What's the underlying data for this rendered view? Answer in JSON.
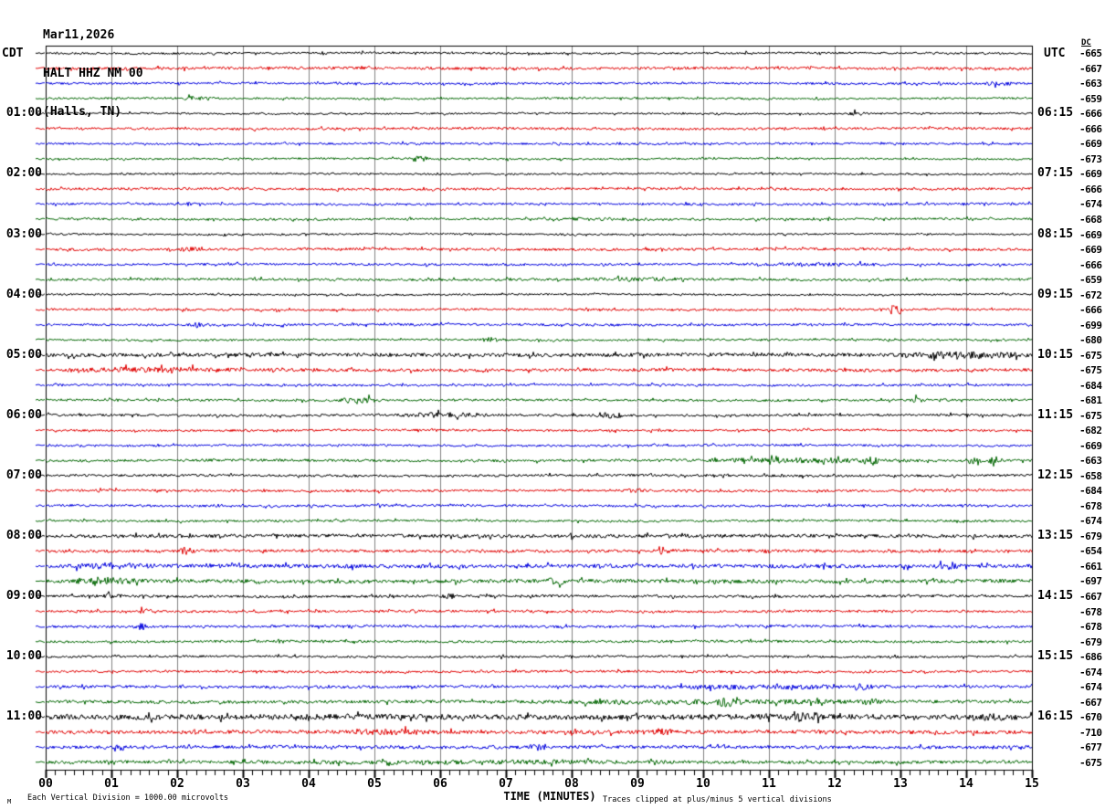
{
  "chart_data": {
    "type": "line",
    "subtype": "seismogram-helicorder",
    "title": {
      "date": "Mar11,2026",
      "station": "HALT HHZ NM 00",
      "location": "(Halls, TN)"
    },
    "left_axis_label": "CDT",
    "right_axis_label": "UTC",
    "dc_header": "DC",
    "xlabel": "TIME (MINUTES)",
    "x_ticks": [
      "00",
      "01",
      "02",
      "03",
      "04",
      "05",
      "06",
      "07",
      "08",
      "09",
      "10",
      "11",
      "12",
      "13",
      "14",
      "15"
    ],
    "x_range": [
      0,
      15
    ],
    "minutes_per_row": 15,
    "rows_per_hour": 4,
    "footer_left": "Each Vertical Division = 1000.00 microvolts",
    "footer_right": "Traces clipped at plus/minus 5 vertical divisions",
    "watermark": "M",
    "grid_color": "#808080",
    "border_color": "#000000",
    "trace_colors": {
      "black": "#000000",
      "red": "#e00000",
      "blue": "#0000dd",
      "green": "#006600"
    },
    "rows": [
      {
        "color": "black",
        "dc": -665,
        "cdt": null,
        "utc": null,
        "amp": 1.1,
        "events": []
      },
      {
        "color": "red",
        "dc": -667,
        "cdt": null,
        "utc": null,
        "amp": 1.5,
        "events": []
      },
      {
        "color": "blue",
        "dc": -663,
        "cdt": null,
        "utc": null,
        "amp": 1.2,
        "events": [
          [
            14.2,
            0.6,
            2.0
          ]
        ]
      },
      {
        "color": "green",
        "dc": -659,
        "cdt": null,
        "utc": null,
        "amp": 1.1,
        "events": [
          [
            2.0,
            0.5,
            1.5
          ]
        ]
      },
      {
        "color": "black",
        "dc": -666,
        "cdt": "01:00",
        "utc": "06:15",
        "amp": 1.0,
        "events": [
          [
            12.2,
            0.3,
            1.5
          ]
        ]
      },
      {
        "color": "red",
        "dc": -666,
        "cdt": null,
        "utc": null,
        "amp": 1.3,
        "events": []
      },
      {
        "color": "blue",
        "dc": -669,
        "cdt": null,
        "utc": null,
        "amp": 1.1,
        "events": []
      },
      {
        "color": "green",
        "dc": -673,
        "cdt": null,
        "utc": null,
        "amp": 1.0,
        "events": [
          [
            5.5,
            0.35,
            2.5
          ]
        ]
      },
      {
        "color": "black",
        "dc": -669,
        "cdt": "02:00",
        "utc": "07:15",
        "amp": 1.0,
        "events": []
      },
      {
        "color": "red",
        "dc": -666,
        "cdt": null,
        "utc": null,
        "amp": 1.3,
        "events": []
      },
      {
        "color": "blue",
        "dc": -674,
        "cdt": null,
        "utc": null,
        "amp": 1.2,
        "events": []
      },
      {
        "color": "green",
        "dc": -668,
        "cdt": null,
        "utc": null,
        "amp": 1.2,
        "events": [
          [
            7.5,
            2.0,
            0.7
          ]
        ]
      },
      {
        "color": "black",
        "dc": -669,
        "cdt": "03:00",
        "utc": "08:15",
        "amp": 1.0,
        "events": []
      },
      {
        "color": "red",
        "dc": -669,
        "cdt": null,
        "utc": null,
        "amp": 1.4,
        "events": [
          [
            2.0,
            0.4,
            1.5
          ]
        ]
      },
      {
        "color": "blue",
        "dc": -666,
        "cdt": null,
        "utc": null,
        "amp": 1.2,
        "events": [
          [
            10.5,
            2.5,
            0.9
          ]
        ]
      },
      {
        "color": "green",
        "dc": -659,
        "cdt": null,
        "utc": null,
        "amp": 1.3,
        "events": [
          [
            8.0,
            2.0,
            0.9
          ]
        ]
      },
      {
        "color": "black",
        "dc": -672,
        "cdt": "04:00",
        "utc": "09:15",
        "amp": 1.0,
        "events": []
      },
      {
        "color": "red",
        "dc": -666,
        "cdt": null,
        "utc": null,
        "amp": 1.2,
        "events": [
          [
            12.8,
            0.25,
            6.0
          ]
        ]
      },
      {
        "color": "blue",
        "dc": -699,
        "cdt": null,
        "utc": null,
        "amp": 1.3,
        "events": [
          [
            2.1,
            0.4,
            2.0
          ]
        ]
      },
      {
        "color": "green",
        "dc": -680,
        "cdt": null,
        "utc": null,
        "amp": 1.1,
        "events": [
          [
            6.6,
            0.3,
            2.0
          ]
        ]
      },
      {
        "color": "black",
        "dc": -675,
        "cdt": "05:00",
        "utc": "10:15",
        "amp": 2.0,
        "events": [
          [
            12.8,
            2.2,
            2.5
          ]
        ]
      },
      {
        "color": "red",
        "dc": -675,
        "cdt": null,
        "utc": null,
        "amp": 1.7,
        "events": [
          [
            0.0,
            3.0,
            1.5
          ]
        ]
      },
      {
        "color": "blue",
        "dc": -684,
        "cdt": null,
        "utc": null,
        "amp": 1.2,
        "events": []
      },
      {
        "color": "green",
        "dc": -681,
        "cdt": null,
        "utc": null,
        "amp": 1.2,
        "events": [
          [
            4.4,
            0.7,
            2.5
          ],
          [
            13.1,
            0.3,
            2.0
          ]
        ]
      },
      {
        "color": "black",
        "dc": -675,
        "cdt": "06:00",
        "utc": "11:15",
        "amp": 1.3,
        "events": [
          [
            5.3,
            1.5,
            1.8
          ],
          [
            8.3,
            0.6,
            2.0
          ]
        ]
      },
      {
        "color": "red",
        "dc": -682,
        "cdt": null,
        "utc": null,
        "amp": 1.2,
        "events": []
      },
      {
        "color": "blue",
        "dc": -669,
        "cdt": null,
        "utc": null,
        "amp": 1.2,
        "events": []
      },
      {
        "color": "green",
        "dc": -663,
        "cdt": null,
        "utc": null,
        "amp": 1.4,
        "events": [
          [
            9.5,
            4.0,
            1.5
          ],
          [
            12.4,
            0.3,
            3.0
          ],
          [
            14.0,
            0.25,
            5.0
          ],
          [
            14.3,
            0.3,
            3.0
          ]
        ]
      },
      {
        "color": "black",
        "dc": -658,
        "cdt": "07:00",
        "utc": "12:15",
        "amp": 1.3,
        "events": []
      },
      {
        "color": "red",
        "dc": -684,
        "cdt": null,
        "utc": null,
        "amp": 1.3,
        "events": [
          [
            8.8,
            0.3,
            1.8
          ]
        ]
      },
      {
        "color": "blue",
        "dc": -678,
        "cdt": null,
        "utc": null,
        "amp": 1.3,
        "events": []
      },
      {
        "color": "green",
        "dc": -674,
        "cdt": null,
        "utc": null,
        "amp": 1.2,
        "events": []
      },
      {
        "color": "black",
        "dc": -679,
        "cdt": "08:00",
        "utc": "13:15",
        "amp": 1.8,
        "events": []
      },
      {
        "color": "red",
        "dc": -654,
        "cdt": null,
        "utc": null,
        "amp": 1.5,
        "events": [
          [
            2.0,
            0.3,
            3.0
          ],
          [
            9.3,
            0.2,
            3.5
          ]
        ]
      },
      {
        "color": "blue",
        "dc": -661,
        "cdt": null,
        "utc": null,
        "amp": 2.0,
        "events": [
          [
            0.3,
            1.5,
            2.0
          ],
          [
            13.5,
            0.5,
            2.0
          ]
        ]
      },
      {
        "color": "green",
        "dc": -697,
        "cdt": null,
        "utc": null,
        "amp": 2.0,
        "events": [
          [
            0.3,
            1.2,
            2.5
          ],
          [
            7.6,
            0.4,
            2.5
          ]
        ]
      },
      {
        "color": "black",
        "dc": -667,
        "cdt": "09:00",
        "utc": "14:15",
        "amp": 1.4,
        "events": [
          [
            0.8,
            0.4,
            2.0
          ],
          [
            6.0,
            0.3,
            1.8
          ]
        ]
      },
      {
        "color": "red",
        "dc": -678,
        "cdt": null,
        "utc": null,
        "amp": 1.3,
        "events": [
          [
            1.4,
            0.3,
            2.0
          ]
        ]
      },
      {
        "color": "blue",
        "dc": -678,
        "cdt": null,
        "utc": null,
        "amp": 1.4,
        "events": [
          [
            1.3,
            0.3,
            2.5
          ]
        ]
      },
      {
        "color": "green",
        "dc": -679,
        "cdt": null,
        "utc": null,
        "amp": 1.3,
        "events": []
      },
      {
        "color": "black",
        "dc": -686,
        "cdt": "10:00",
        "utc": "15:15",
        "amp": 1.2,
        "events": []
      },
      {
        "color": "red",
        "dc": -674,
        "cdt": null,
        "utc": null,
        "amp": 1.3,
        "events": []
      },
      {
        "color": "blue",
        "dc": -674,
        "cdt": null,
        "utc": null,
        "amp": 1.5,
        "events": [
          [
            9.0,
            4.0,
            1.2
          ],
          [
            12.2,
            0.4,
            2.0
          ]
        ]
      },
      {
        "color": "green",
        "dc": -667,
        "cdt": null,
        "utc": null,
        "amp": 1.7,
        "events": [
          [
            7.0,
            6.0,
            1.3
          ],
          [
            10.2,
            0.3,
            2.5
          ],
          [
            12.3,
            0.4,
            2.5
          ]
        ]
      },
      {
        "color": "black",
        "dc": -670,
        "cdt": "11:00",
        "utc": "16:15",
        "amp": 2.8,
        "events": [
          [
            3.7,
            0.6,
            3.0
          ],
          [
            11.3,
            0.5,
            3.5
          ],
          [
            14.2,
            0.4,
            2.5
          ]
        ]
      },
      {
        "color": "red",
        "dc": -710,
        "cdt": null,
        "utc": null,
        "amp": 2.0,
        "events": [
          [
            4.5,
            1.5,
            1.5
          ],
          [
            9.2,
            0.4,
            2.5
          ]
        ]
      },
      {
        "color": "blue",
        "dc": -677,
        "cdt": null,
        "utc": null,
        "amp": 1.7,
        "events": [
          [
            1.0,
            0.3,
            2.5
          ],
          [
            7.3,
            0.4,
            2.5
          ]
        ]
      },
      {
        "color": "green",
        "dc": -675,
        "cdt": null,
        "utc": null,
        "amp": 1.7,
        "events": [
          [
            3.0,
            7.0,
            0.8
          ]
        ]
      }
    ]
  }
}
